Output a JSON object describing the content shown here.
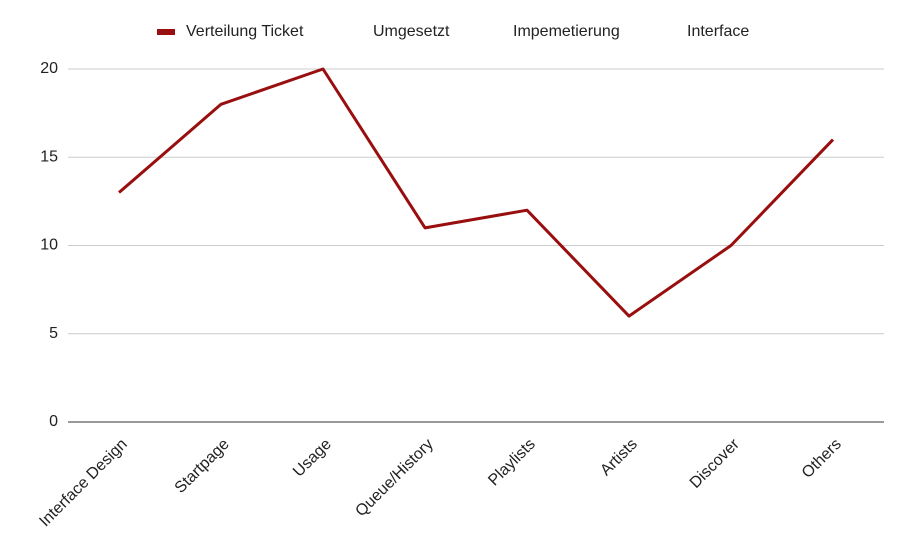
{
  "chart_data": {
    "type": "line",
    "categories": [
      "Interface Design",
      "Startpage",
      "Usage",
      "Queue/History",
      "Playlists",
      "Artists",
      "Discover",
      "Others"
    ],
    "series": [
      {
        "name": "Verteilung Ticket",
        "color": "#990f0f",
        "values": [
          13,
          18,
          20,
          11,
          12,
          6,
          10,
          16
        ]
      },
      {
        "name": "Umgesetzt",
        "values": [
          null,
          null,
          null,
          null,
          null,
          null,
          null,
          null
        ]
      },
      {
        "name": "Impemetierung",
        "values": [
          null,
          null,
          null,
          null,
          null,
          null,
          null,
          null
        ]
      },
      {
        "name": "Interface",
        "values": [
          null,
          null,
          null,
          null,
          null,
          null,
          null,
          null
        ]
      }
    ],
    "ylim": [
      0,
      20
    ],
    "yticks": [
      0,
      5,
      10,
      15,
      20
    ],
    "grid": true,
    "legend": "top"
  }
}
